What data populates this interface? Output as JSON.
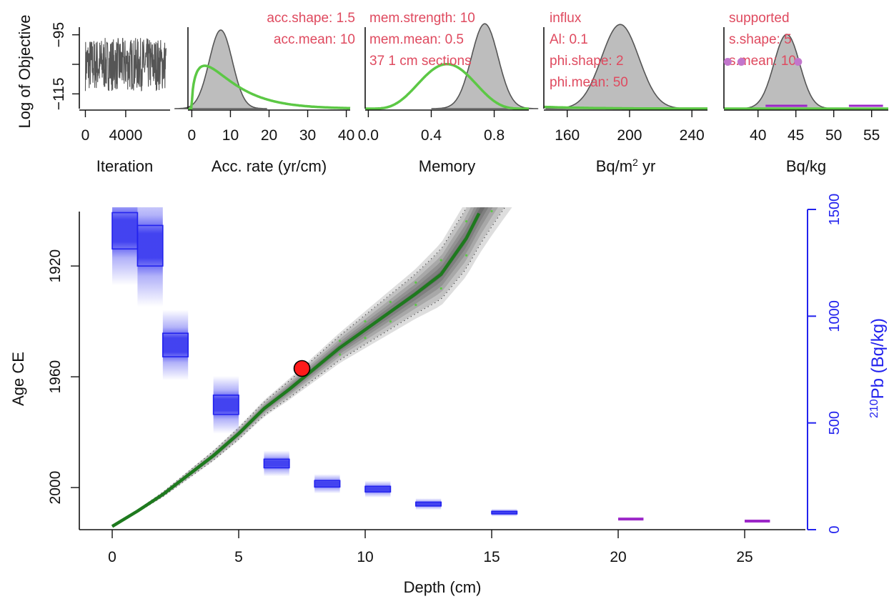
{
  "colors": {
    "annotation": "#df4a5f",
    "green": "#5cc845",
    "dark_green": "#1e7a1e",
    "blue": "#2222ee",
    "purple": "#9c27c8",
    "violet_point": "#c276cc",
    "red": "#ff1a1a",
    "gray_fill": "#bdbdbd",
    "gray_line": "#555555",
    "trace": "#555555",
    "axis": "#111111"
  },
  "chart_data": [
    {
      "type": "line",
      "id": "iterations",
      "ylabel": "Log of Objective",
      "xlabel": "Iteration",
      "xlim": [
        -600,
        8400
      ],
      "ylim": [
        -120,
        -90
      ],
      "xticks": [
        0,
        4000
      ],
      "yticks": [
        -95,
        -105,
        -115
      ],
      "ytick_labels": [
        "−95",
        "",
        "−115"
      ],
      "x_last": 8000,
      "y_mean": -105,
      "y_spread": 9,
      "n_points": 360
    },
    {
      "type": "area",
      "id": "acc_rate",
      "xlabel": "Acc. rate (yr/cm)",
      "xlim": [
        -1,
        41
      ],
      "ylim": [
        0,
        0.15
      ],
      "xticks": [
        0,
        10,
        20,
        30,
        40
      ],
      "xtick_labels": [
        "0",
        "10",
        "20",
        "30",
        "40"
      ],
      "posterior": {
        "shape": "normal",
        "mean": 7.5,
        "sd": 3.0
      },
      "prior": {
        "shape": "gamma",
        "acc_shape": 1.5,
        "acc_mean": 10
      },
      "annotations": [
        "acc.shape:  1.5",
        "acc.mean:  10"
      ]
    },
    {
      "type": "area",
      "id": "memory",
      "xlabel": "Memory",
      "xlim": [
        -0.02,
        1.02
      ],
      "ylim": [
        0,
        4.9
      ],
      "xticks": [
        0.0,
        0.4,
        0.8
      ],
      "xtick_labels": [
        "0.0",
        "0.4",
        "0.8"
      ],
      "posterior": {
        "shape": "normal",
        "mean": 0.74,
        "sd": 0.085
      },
      "prior": {
        "shape": "beta",
        "mem_strength": 10,
        "mem_mean": 0.5
      },
      "annotations": [
        "mem.strength: 10",
        "mem.mean: 0.5",
        "37 1 cm sections"
      ]
    },
    {
      "type": "area",
      "id": "influx",
      "xlabel": "Bq/m",
      "xlabel_sup": "2",
      "xlabel_suffix": " yr",
      "xlim": [
        145,
        250
      ],
      "ylim": [
        0,
        0.035
      ],
      "xticks": [
        160,
        200,
        240
      ],
      "xtick_labels": [
        "160",
        "200",
        "240"
      ],
      "posterior": {
        "shape": "normal",
        "mean": 194,
        "sd": 12
      },
      "prior": {
        "shape": "gamma",
        "phi_shape": 2,
        "phi_mean": 50
      },
      "annotations": [
        "influx",
        "Al:  0.1",
        "phi.shape:  2",
        "phi.mean:  50"
      ]
    },
    {
      "type": "area",
      "id": "supported",
      "xlabel": "Bq/kg",
      "xlim": [
        35.5,
        57.2
      ],
      "ylim": [
        0,
        0.28
      ],
      "xticks": [
        40,
        45,
        50,
        55
      ],
      "xtick_labels": [
        "40",
        "45",
        "50",
        "55"
      ],
      "posterior": {
        "shape": "normal",
        "mean": 43.8,
        "sd": 1.7
      },
      "prior": {
        "shape": "gamma",
        "s_shape": 5,
        "s_mean": 10
      },
      "points": [
        36.0,
        37.8,
        45.3
      ],
      "point_height": 0.148,
      "ranges": [
        [
          41.0,
          46.5
        ],
        [
          52.0,
          56.5
        ]
      ],
      "annotations": [
        "supported",
        "s.shape: 5",
        "s.mean: 10"
      ]
    },
    {
      "type": "line",
      "id": "age_depth",
      "xlabel": "Depth (cm)",
      "ylabel": "Age CE",
      "xlim": [
        -1.3,
        27.4
      ],
      "ylim": [
        2015.2,
        1898.8
      ],
      "xticks": [
        0,
        5,
        10,
        15,
        20,
        25
      ],
      "xtick_labels": [
        "0",
        "5",
        "10",
        "15",
        "20",
        "25"
      ],
      "yticks": [
        2000,
        1960,
        1920
      ],
      "ytick_labels": [
        "2000",
        "1960",
        "1920"
      ],
      "right_axis": {
        "label_sup": "210",
        "label": "Pb (Bq/kg)",
        "ylim": [
          0,
          1500
        ],
        "ticks": [
          0,
          500,
          1000,
          1500
        ],
        "tick_labels": [
          "0",
          "500",
          "1000",
          "1500"
        ]
      },
      "median_model": {
        "depth": [
          0,
          1,
          2,
          3,
          4,
          5,
          6,
          7,
          8,
          9,
          10,
          11,
          12,
          13,
          14,
          14.5
        ],
        "age": [
          2014,
          2008.5,
          2002.5,
          1995.5,
          1988.5,
          1980.5,
          1971.5,
          1964.5,
          1957,
          1949.5,
          1943,
          1936.5,
          1930,
          1923,
          1910,
          1901
        ]
      },
      "model_uncertainty": {
        "depth": [
          0,
          3,
          6,
          9,
          12,
          15,
          17.4
        ],
        "halfwidth_yr": [
          0,
          1.5,
          3,
          5.5,
          9,
          16,
          24
        ]
      },
      "red_point": {
        "depth": 7.5,
        "age": 1957
      },
      "pb210_blocks": [
        {
          "depth_top": 0,
          "depth_bot": 1,
          "activity": 1400,
          "sd": 85
        },
        {
          "depth_top": 1,
          "depth_bot": 2,
          "activity": 1330,
          "sd": 95
        },
        {
          "depth_top": 2,
          "depth_bot": 3,
          "activity": 865,
          "sd": 55
        },
        {
          "depth_top": 4,
          "depth_bot": 5,
          "activity": 585,
          "sd": 45
        },
        {
          "depth_top": 6,
          "depth_bot": 7,
          "activity": 310,
          "sd": 20
        },
        {
          "depth_top": 8,
          "depth_bot": 9,
          "activity": 215,
          "sd": 15
        },
        {
          "depth_top": 10,
          "depth_bot": 11,
          "activity": 190,
          "sd": 13
        },
        {
          "depth_top": 12,
          "depth_bot": 13,
          "activity": 120,
          "sd": 9
        },
        {
          "depth_top": 15,
          "depth_bot": 16,
          "activity": 80,
          "sd": 6
        }
      ],
      "supported_samples": [
        {
          "depth_top": 20,
          "depth_bot": 21,
          "activity": 50
        },
        {
          "depth_top": 25,
          "depth_bot": 26,
          "activity": 40
        }
      ]
    }
  ]
}
